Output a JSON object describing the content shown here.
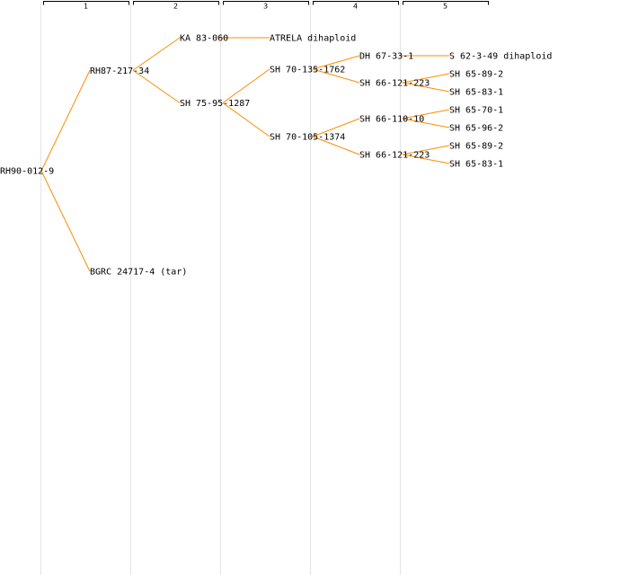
{
  "generations": [
    "1",
    "2",
    "3",
    "4",
    "5"
  ],
  "colors": {
    "edge": "#ff8c00",
    "column_line": "#e4e4e4",
    "text": "#000000",
    "background": "#ffffff"
  },
  "root": {
    "name": "RH90-012-9",
    "children": [
      {
        "name": "RH87-217-34",
        "children": [
          {
            "name": "KA 83-060",
            "children": [
              {
                "name": "ATRELA dihaploid"
              }
            ]
          },
          {
            "name": "SH 75-95-1287",
            "children": [
              {
                "name": "SH 70-135-1762",
                "children": [
                  {
                    "name": "DH 67-33-1",
                    "children": [
                      {
                        "name": "S 62-3-49 dihaploid"
                      }
                    ]
                  },
                  {
                    "name": "SH 66-121-223",
                    "children": [
                      {
                        "name": "SH 65-89-2"
                      },
                      {
                        "name": "SH 65-83-1"
                      }
                    ]
                  }
                ]
              },
              {
                "name": "SH 70-105-1374",
                "children": [
                  {
                    "name": "SH 66-110-10",
                    "children": [
                      {
                        "name": "SH 65-70-1"
                      },
                      {
                        "name": "SH 65-96-2"
                      }
                    ]
                  },
                  {
                    "name": "SH 66-121-223",
                    "children": [
                      {
                        "name": "SH 65-89-2"
                      },
                      {
                        "name": "SH 65-83-1"
                      }
                    ]
                  }
                ]
              }
            ]
          }
        ]
      },
      {
        "name": "BGRC 24717-4 (tar)"
      }
    ]
  }
}
